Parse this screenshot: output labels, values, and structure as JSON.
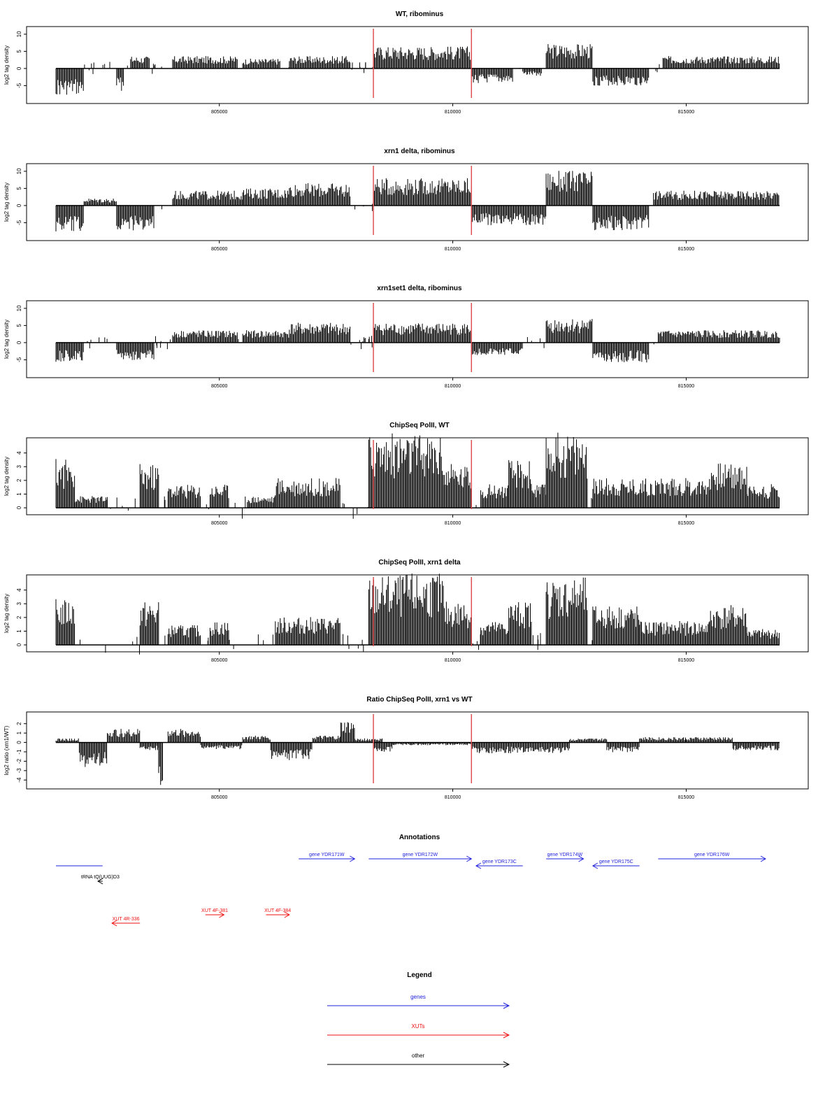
{
  "colors": {
    "bars": "#000000",
    "marker": "#e05050",
    "gene": "#2020dd",
    "xut": "#ee1111",
    "other": "#000000"
  },
  "chart_data": [
    {
      "type": "bar",
      "title": "WT, ribominus",
      "ylabel": "log2 tag density",
      "xlim": [
        801500,
        817000
      ],
      "ylim": [
        -9,
        11
      ],
      "yticks": [
        -5,
        0,
        5,
        10
      ],
      "xticks": [
        805000,
        810000,
        815000
      ],
      "markers": [
        808300,
        810400
      ],
      "segments": [
        {
          "x": [
            801500,
            802100
          ],
          "v": -5.5
        },
        {
          "x": [
            802800,
            802950
          ],
          "v": -4.5
        },
        {
          "x": [
            803100,
            803500
          ],
          "v": 2.5
        },
        {
          "x": [
            804000,
            805400
          ],
          "v": 2.5
        },
        {
          "x": [
            805500,
            806300
          ],
          "v": 2
        },
        {
          "x": [
            806500,
            807800
          ],
          "v": 2.5
        },
        {
          "x": [
            808300,
            810400
          ],
          "v": 4.5
        },
        {
          "x": [
            810400,
            811300
          ],
          "v": -3
        },
        {
          "x": [
            811500,
            811900
          ],
          "v": -1.5
        },
        {
          "x": [
            812000,
            813000
          ],
          "v": 5
        },
        {
          "x": [
            813000,
            814200
          ],
          "v": -3.5
        },
        {
          "x": [
            814500,
            817000
          ],
          "v": 2.5
        }
      ]
    },
    {
      "type": "bar",
      "title": "xrn1 delta, ribominus",
      "ylabel": "log2 tag density",
      "xlim": [
        801500,
        817000
      ],
      "ylim": [
        -9,
        11
      ],
      "yticks": [
        -5,
        0,
        5,
        10
      ],
      "xticks": [
        805000,
        810000,
        815000
      ],
      "markers": [
        808300,
        810400
      ],
      "segments": [
        {
          "x": [
            801500,
            802100
          ],
          "v": -5.5
        },
        {
          "x": [
            802100,
            802800
          ],
          "v": 1.5
        },
        {
          "x": [
            802800,
            803600
          ],
          "v": -5
        },
        {
          "x": [
            804000,
            805500
          ],
          "v": 3
        },
        {
          "x": [
            805500,
            806500
          ],
          "v": 3.5
        },
        {
          "x": [
            806500,
            807800
          ],
          "v": 4.5
        },
        {
          "x": [
            808300,
            810400
          ],
          "v": 5.5
        },
        {
          "x": [
            810400,
            812000
          ],
          "v": -4
        },
        {
          "x": [
            812000,
            813000
          ],
          "v": 7
        },
        {
          "x": [
            813000,
            814200
          ],
          "v": -5
        },
        {
          "x": [
            814300,
            817000
          ],
          "v": 3
        }
      ]
    },
    {
      "type": "bar",
      "title": "xrn1set1 delta, ribominus",
      "ylabel": "log2 tag density",
      "xlim": [
        801500,
        817000
      ],
      "ylim": [
        -9,
        11
      ],
      "yticks": [
        -5,
        0,
        5,
        10
      ],
      "xticks": [
        805000,
        810000,
        815000
      ],
      "markers": [
        808300,
        810400
      ],
      "segments": [
        {
          "x": [
            801500,
            802100
          ],
          "v": -4
        },
        {
          "x": [
            802800,
            803600
          ],
          "v": -3.5
        },
        {
          "x": [
            804000,
            805400
          ],
          "v": 2.5
        },
        {
          "x": [
            805500,
            806500
          ],
          "v": 2.5
        },
        {
          "x": [
            806500,
            807800
          ],
          "v": 4
        },
        {
          "x": [
            808300,
            810400
          ],
          "v": 4
        },
        {
          "x": [
            810400,
            811500
          ],
          "v": -2.5
        },
        {
          "x": [
            812000,
            813000
          ],
          "v": 5
        },
        {
          "x": [
            813000,
            814200
          ],
          "v": -4
        },
        {
          "x": [
            814400,
            817000
          ],
          "v": 2.5
        }
      ]
    },
    {
      "type": "bar",
      "title": "ChipSeq PolII, WT",
      "ylabel": "log2 tag density",
      "xlim": [
        801500,
        817000
      ],
      "ylim": [
        -0.2,
        4.8
      ],
      "yticks": [
        0,
        1,
        2,
        3,
        4
      ],
      "xticks": [
        805000,
        810000,
        815000
      ],
      "markers": [
        808300,
        810400
      ],
      "segments": [
        {
          "x": [
            801500,
            801900
          ],
          "v": 2.5
        },
        {
          "x": [
            801900,
            802600
          ],
          "v": 0.6
        },
        {
          "x": [
            803300,
            803700
          ],
          "v": 2.2
        },
        {
          "x": [
            803900,
            804600
          ],
          "v": 1.2
        },
        {
          "x": [
            804800,
            805200
          ],
          "v": 1.2
        },
        {
          "x": [
            805600,
            806200
          ],
          "v": 0.6
        },
        {
          "x": [
            806200,
            807600
          ],
          "v": 1.5
        },
        {
          "x": [
            808200,
            809000
          ],
          "v": 3.8
        },
        {
          "x": [
            809000,
            809800
          ],
          "v": 3.7
        },
        {
          "x": [
            809800,
            810400
          ],
          "v": 2.2
        },
        {
          "x": [
            810600,
            811200
          ],
          "v": 1.2
        },
        {
          "x": [
            811200,
            811700
          ],
          "v": 2.4
        },
        {
          "x": [
            811700,
            812000
          ],
          "v": 1.2
        },
        {
          "x": [
            812000,
            812900
          ],
          "v": 3.8
        },
        {
          "x": [
            813000,
            815500
          ],
          "v": 1.5
        },
        {
          "x": [
            815500,
            816300
          ],
          "v": 2.3
        },
        {
          "x": [
            816300,
            817000
          ],
          "v": 1.2
        }
      ]
    },
    {
      "type": "bar",
      "title": "ChipSeq PolII, xrn1 delta",
      "ylabel": "log2 tag density",
      "xlim": [
        801500,
        817000
      ],
      "ylim": [
        -0.2,
        4.8
      ],
      "yticks": [
        0,
        1,
        2,
        3,
        4
      ],
      "xticks": [
        805000,
        810000,
        815000
      ],
      "markers": [
        808300,
        810400
      ],
      "segments": [
        {
          "x": [
            801500,
            801900
          ],
          "v": 2.3
        },
        {
          "x": [
            803300,
            803700
          ],
          "v": 2.2
        },
        {
          "x": [
            803900,
            804600
          ],
          "v": 1
        },
        {
          "x": [
            804800,
            805200
          ],
          "v": 1.2
        },
        {
          "x": [
            806200,
            807600
          ],
          "v": 1.4
        },
        {
          "x": [
            808200,
            809000
          ],
          "v": 3.5
        },
        {
          "x": [
            809000,
            809800
          ],
          "v": 3.6
        },
        {
          "x": [
            809800,
            810400
          ],
          "v": 2.2
        },
        {
          "x": [
            810600,
            811200
          ],
          "v": 1.2
        },
        {
          "x": [
            811200,
            811700
          ],
          "v": 2.2
        },
        {
          "x": [
            812000,
            812900
          ],
          "v": 3.4
        },
        {
          "x": [
            813000,
            814000
          ],
          "v": 2
        },
        {
          "x": [
            814000,
            815500
          ],
          "v": 1.2
        },
        {
          "x": [
            815500,
            816300
          ],
          "v": 2
        },
        {
          "x": [
            816300,
            817000
          ],
          "v": 0.8
        }
      ]
    },
    {
      "type": "bar",
      "title": "Ratio ChipSeq PolII, xrn1 vs WT",
      "ylabel": "log2 ratio (xrn1/WT)",
      "xlim": [
        801500,
        817000
      ],
      "ylim": [
        -4.5,
        2.8
      ],
      "yticks": [
        -4,
        -3,
        -2,
        -1,
        0,
        1,
        2
      ],
      "xticks": [
        805000,
        810000,
        815000
      ],
      "markers": [
        808300,
        810400
      ],
      "segments": [
        {
          "x": [
            801500,
            802000
          ],
          "v": 0.3
        },
        {
          "x": [
            802000,
            802600
          ],
          "v": -1.8
        },
        {
          "x": [
            802600,
            803300
          ],
          "v": 1
        },
        {
          "x": [
            803300,
            803700
          ],
          "v": -0.6
        },
        {
          "x": [
            803700,
            803800
          ],
          "v": -4.3
        },
        {
          "x": [
            803900,
            804600
          ],
          "v": 1
        },
        {
          "x": [
            804600,
            805500
          ],
          "v": -0.5
        },
        {
          "x": [
            805500,
            806100
          ],
          "v": 0.5
        },
        {
          "x": [
            806100,
            807000
          ],
          "v": -1.3
        },
        {
          "x": [
            807000,
            807600
          ],
          "v": 0.5
        },
        {
          "x": [
            807600,
            807900
          ],
          "v": 1.6
        },
        {
          "x": [
            807900,
            808500
          ],
          "v": 0.3
        },
        {
          "x": [
            808300,
            808700
          ],
          "v": -0.7
        },
        {
          "x": [
            808700,
            810400
          ],
          "v": -0.2
        },
        {
          "x": [
            810400,
            812500
          ],
          "v": -0.8
        },
        {
          "x": [
            812500,
            813300
          ],
          "v": 0.3
        },
        {
          "x": [
            813300,
            814000
          ],
          "v": -0.8
        },
        {
          "x": [
            814000,
            815000
          ],
          "v": 0.4
        },
        {
          "x": [
            815000,
            816000
          ],
          "v": 0.4
        },
        {
          "x": [
            816000,
            817000
          ],
          "v": -0.6
        }
      ]
    }
  ],
  "annotations": {
    "title": "Annotations",
    "xlim": [
      801500,
      817000
    ],
    "features": [
      {
        "label": "",
        "type": "other-line",
        "x0": 801500,
        "x1": 802500,
        "row": 1
      },
      {
        "label": "gene YDR171W",
        "type": "gene",
        "x0": 806700,
        "x1": 807900,
        "row": 0
      },
      {
        "label": "gene YDR172W",
        "type": "gene",
        "x0": 808200,
        "x1": 810400,
        "row": 0
      },
      {
        "label": "gene YDR173C",
        "type": "gene",
        "x0": 811500,
        "x1": 810500,
        "row": 1
      },
      {
        "label": "gene YDR174W",
        "type": "gene",
        "x0": 812000,
        "x1": 812800,
        "row": 0
      },
      {
        "label": "gene YDR175C",
        "type": "gene",
        "x0": 814000,
        "x1": 813000,
        "row": 1
      },
      {
        "label": "gene YDR176W",
        "type": "gene",
        "x0": 814400,
        "x1": 816700,
        "row": 0
      },
      {
        "label": "tRNA tQ(UUG)D3",
        "type": "other",
        "x0": 802500,
        "x1": 802400,
        "row": 2
      },
      {
        "label": "XUT 4R-336",
        "type": "xut",
        "x0": 803300,
        "x1": 802700,
        "row": 4
      },
      {
        "label": "XUT 4F-381",
        "type": "xut",
        "x0": 804700,
        "x1": 805100,
        "row": 3
      },
      {
        "label": "XUT 4F-384",
        "type": "xut",
        "x0": 806000,
        "x1": 806500,
        "row": 3
      }
    ]
  },
  "legend": {
    "title": "Legend",
    "items": [
      {
        "label": "genes",
        "type": "gene"
      },
      {
        "label": "XUTs",
        "type": "xut"
      },
      {
        "label": "other",
        "type": "other"
      }
    ]
  }
}
